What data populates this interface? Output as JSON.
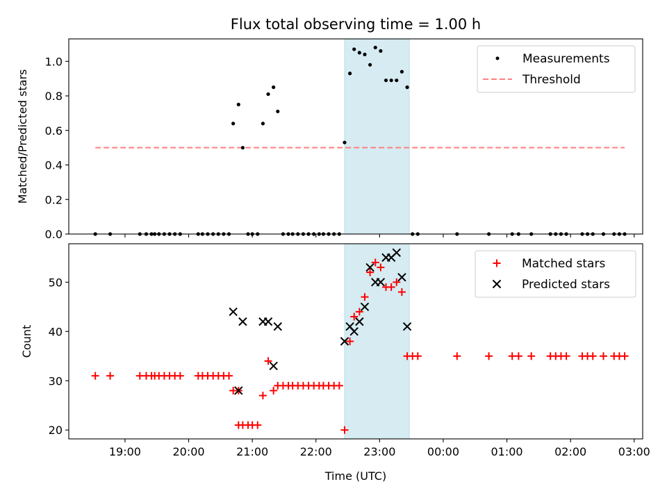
{
  "chart_data": [
    {
      "type": "scatter",
      "title": "Flux total observing time = 1.00 h",
      "ylabel": "Matched/Predicted stars",
      "xlabel": "",
      "ylim": [
        0,
        1.13
      ],
      "xlim": [
        "2024-01-01T18:07",
        "2024-01-02T03:08"
      ],
      "yticks": [
        "0.0",
        "0.2",
        "0.4",
        "0.6",
        "0.8",
        "1.0"
      ],
      "ytick_values": [
        0,
        0.2,
        0.4,
        0.6,
        0.8,
        1.0
      ],
      "highlight_span": [
        "2024-01-01T22:27",
        "2024-01-01T23:28"
      ],
      "highlight_color": "#add8e6",
      "legend": {
        "position": "top-right",
        "entries": [
          "Measurements",
          "Threshold"
        ]
      },
      "series": [
        {
          "name": "Measurements",
          "marker": "dot",
          "color": "#000000",
          "points": [
            [
              "2024-01-01T18:32",
              0
            ],
            [
              "2024-01-01T18:46",
              0
            ],
            [
              "2024-01-01T19:14",
              0
            ],
            [
              "2024-01-01T19:20",
              0
            ],
            [
              "2024-01-01T19:25",
              0
            ],
            [
              "2024-01-01T19:28",
              0
            ],
            [
              "2024-01-01T19:32",
              0
            ],
            [
              "2024-01-01T19:37",
              0
            ],
            [
              "2024-01-01T19:42",
              0
            ],
            [
              "2024-01-01T19:47",
              0
            ],
            [
              "2024-01-01T19:52",
              0
            ],
            [
              "2024-01-01T20:09",
              0
            ],
            [
              "2024-01-01T20:13",
              0
            ],
            [
              "2024-01-01T20:18",
              0
            ],
            [
              "2024-01-01T20:23",
              0
            ],
            [
              "2024-01-01T20:28",
              0
            ],
            [
              "2024-01-01T20:33",
              0
            ],
            [
              "2024-01-01T20:38",
              0
            ],
            [
              "2024-01-01T20:42",
              0.64
            ],
            [
              "2024-01-01T20:47",
              0.75
            ],
            [
              "2024-01-01T20:51",
              0.5
            ],
            [
              "2024-01-01T20:56",
              0
            ],
            [
              "2024-01-01T21:00",
              0
            ],
            [
              "2024-01-01T21:05",
              0
            ],
            [
              "2024-01-01T21:10",
              0.64
            ],
            [
              "2024-01-01T21:15",
              0.81
            ],
            [
              "2024-01-01T21:20",
              0.85
            ],
            [
              "2024-01-01T21:24",
              0.71
            ],
            [
              "2024-01-01T21:29",
              0
            ],
            [
              "2024-01-01T21:34",
              0
            ],
            [
              "2024-01-01T21:38",
              0
            ],
            [
              "2024-01-01T21:43",
              0
            ],
            [
              "2024-01-01T21:48",
              0
            ],
            [
              "2024-01-01T21:53",
              0
            ],
            [
              "2024-01-01T21:58",
              0
            ],
            [
              "2024-01-01T22:03",
              0
            ],
            [
              "2024-01-01T22:07",
              0
            ],
            [
              "2024-01-01T22:12",
              0
            ],
            [
              "2024-01-01T22:17",
              0
            ],
            [
              "2024-01-01T22:22",
              0
            ],
            [
              "2024-01-01T22:27",
              0.53
            ],
            [
              "2024-01-01T22:32",
              0.93
            ],
            [
              "2024-01-01T22:36",
              1.07
            ],
            [
              "2024-01-01T22:41",
              1.05
            ],
            [
              "2024-01-01T22:46",
              1.04
            ],
            [
              "2024-01-01T22:51",
              0.98
            ],
            [
              "2024-01-01T22:56",
              1.08
            ],
            [
              "2024-01-01T23:01",
              1.06
            ],
            [
              "2024-01-01T23:06",
              0.89
            ],
            [
              "2024-01-01T23:11",
              0.89
            ],
            [
              "2024-01-01T23:16",
              0.89
            ],
            [
              "2024-01-01T23:21",
              0.94
            ],
            [
              "2024-01-01T23:26",
              0.85
            ],
            [
              "2024-01-01T23:31",
              0
            ],
            [
              "2024-01-01T23:36",
              0
            ],
            [
              "2024-01-02T00:13",
              0
            ],
            [
              "2024-01-02T00:43",
              0
            ],
            [
              "2024-01-02T01:05",
              0
            ],
            [
              "2024-01-02T01:11",
              0
            ],
            [
              "2024-01-02T01:23",
              0
            ],
            [
              "2024-01-02T01:41",
              0
            ],
            [
              "2024-01-02T01:46",
              0
            ],
            [
              "2024-01-02T01:51",
              0
            ],
            [
              "2024-01-02T01:56",
              0
            ],
            [
              "2024-01-02T02:11",
              0
            ],
            [
              "2024-01-02T02:16",
              0
            ],
            [
              "2024-01-02T02:21",
              0
            ],
            [
              "2024-01-02T02:31",
              0
            ],
            [
              "2024-01-02T02:41",
              0
            ],
            [
              "2024-01-02T02:46",
              0
            ],
            [
              "2024-01-02T02:51",
              0
            ]
          ]
        },
        {
          "name": "Threshold",
          "marker": "dashed-line",
          "color": "#ff7f7f",
          "points": [
            [
              "2024-01-01T18:32",
              0.5
            ],
            [
              "2024-01-02T02:51",
              0.5
            ]
          ]
        }
      ]
    },
    {
      "type": "scatter",
      "title": "",
      "ylabel": "Count",
      "xlabel": "Time (UTC)",
      "ylim": [
        18.2,
        57.8
      ],
      "xlim": [
        "2024-01-01T18:07",
        "2024-01-02T03:08"
      ],
      "yticks": [
        "20",
        "30",
        "40",
        "50"
      ],
      "ytick_values": [
        20,
        30,
        40,
        50
      ],
      "xticks": [
        "19:00",
        "20:00",
        "21:00",
        "22:00",
        "23:00",
        "00:00",
        "01:00",
        "02:00",
        "03:00"
      ],
      "xtick_values": [
        "2024-01-01T19:00",
        "2024-01-01T20:00",
        "2024-01-01T21:00",
        "2024-01-01T22:00",
        "2024-01-01T23:00",
        "2024-01-02T00:00",
        "2024-01-02T01:00",
        "2024-01-02T02:00",
        "2024-01-02T03:00"
      ],
      "highlight_span": [
        "2024-01-01T22:27",
        "2024-01-01T23:28"
      ],
      "highlight_color": "#add8e6",
      "legend": {
        "position": "top-right",
        "entries": [
          "Matched stars",
          "Predicted stars"
        ]
      },
      "series": [
        {
          "name": "Matched stars",
          "marker": "plus",
          "color": "#ff0000",
          "points": [
            [
              "2024-01-01T18:32",
              31
            ],
            [
              "2024-01-01T18:46",
              31
            ],
            [
              "2024-01-01T19:14",
              31
            ],
            [
              "2024-01-01T19:20",
              31
            ],
            [
              "2024-01-01T19:25",
              31
            ],
            [
              "2024-01-01T19:28",
              31
            ],
            [
              "2024-01-01T19:32",
              31
            ],
            [
              "2024-01-01T19:37",
              31
            ],
            [
              "2024-01-01T19:42",
              31
            ],
            [
              "2024-01-01T19:47",
              31
            ],
            [
              "2024-01-01T19:52",
              31
            ],
            [
              "2024-01-01T20:09",
              31
            ],
            [
              "2024-01-01T20:13",
              31
            ],
            [
              "2024-01-01T20:18",
              31
            ],
            [
              "2024-01-01T20:23",
              31
            ],
            [
              "2024-01-01T20:28",
              31
            ],
            [
              "2024-01-01T20:33",
              31
            ],
            [
              "2024-01-01T20:38",
              31
            ],
            [
              "2024-01-01T20:42",
              28
            ],
            [
              "2024-01-01T20:47",
              28
            ],
            [
              "2024-01-01T20:47",
              21
            ],
            [
              "2024-01-01T20:51",
              21
            ],
            [
              "2024-01-01T20:56",
              21
            ],
            [
              "2024-01-01T21:00",
              21
            ],
            [
              "2024-01-01T21:05",
              21
            ],
            [
              "2024-01-01T21:10",
              27
            ],
            [
              "2024-01-01T21:15",
              34
            ],
            [
              "2024-01-01T21:20",
              28
            ],
            [
              "2024-01-01T21:24",
              29
            ],
            [
              "2024-01-01T21:29",
              29
            ],
            [
              "2024-01-01T21:34",
              29
            ],
            [
              "2024-01-01T21:38",
              29
            ],
            [
              "2024-01-01T21:43",
              29
            ],
            [
              "2024-01-01T21:48",
              29
            ],
            [
              "2024-01-01T21:53",
              29
            ],
            [
              "2024-01-01T21:58",
              29
            ],
            [
              "2024-01-01T22:03",
              29
            ],
            [
              "2024-01-01T22:07",
              29
            ],
            [
              "2024-01-01T22:12",
              29
            ],
            [
              "2024-01-01T22:17",
              29
            ],
            [
              "2024-01-01T22:22",
              29
            ],
            [
              "2024-01-01T22:27",
              20
            ],
            [
              "2024-01-01T22:32",
              38
            ],
            [
              "2024-01-01T22:36",
              43
            ],
            [
              "2024-01-01T22:41",
              44
            ],
            [
              "2024-01-01T22:46",
              47
            ],
            [
              "2024-01-01T22:51",
              52
            ],
            [
              "2024-01-01T22:56",
              54
            ],
            [
              "2024-01-01T23:01",
              53
            ],
            [
              "2024-01-01T23:06",
              49
            ],
            [
              "2024-01-01T23:11",
              49
            ],
            [
              "2024-01-01T23:16",
              50
            ],
            [
              "2024-01-01T23:21",
              48
            ],
            [
              "2024-01-01T23:26",
              35
            ],
            [
              "2024-01-01T23:31",
              35
            ],
            [
              "2024-01-01T23:36",
              35
            ],
            [
              "2024-01-02T00:13",
              35
            ],
            [
              "2024-01-02T00:43",
              35
            ],
            [
              "2024-01-02T01:05",
              35
            ],
            [
              "2024-01-02T01:11",
              35
            ],
            [
              "2024-01-02T01:23",
              35
            ],
            [
              "2024-01-02T01:41",
              35
            ],
            [
              "2024-01-02T01:46",
              35
            ],
            [
              "2024-01-02T01:51",
              35
            ],
            [
              "2024-01-02T01:56",
              35
            ],
            [
              "2024-01-02T02:11",
              35
            ],
            [
              "2024-01-02T02:16",
              35
            ],
            [
              "2024-01-02T02:21",
              35
            ],
            [
              "2024-01-02T02:31",
              35
            ],
            [
              "2024-01-02T02:41",
              35
            ],
            [
              "2024-01-02T02:46",
              35
            ],
            [
              "2024-01-02T02:51",
              35
            ]
          ]
        },
        {
          "name": "Predicted stars",
          "marker": "x",
          "color": "#000000",
          "points": [
            [
              "2024-01-01T20:42",
              44
            ],
            [
              "2024-01-01T20:47",
              28
            ],
            [
              "2024-01-01T20:51",
              42
            ],
            [
              "2024-01-01T21:10",
              42
            ],
            [
              "2024-01-01T21:15",
              42
            ],
            [
              "2024-01-01T21:20",
              33
            ],
            [
              "2024-01-01T21:24",
              41
            ],
            [
              "2024-01-01T22:27",
              38
            ],
            [
              "2024-01-01T22:32",
              41
            ],
            [
              "2024-01-01T22:36",
              40
            ],
            [
              "2024-01-01T22:41",
              42
            ],
            [
              "2024-01-01T22:46",
              45
            ],
            [
              "2024-01-01T22:51",
              53
            ],
            [
              "2024-01-01T22:56",
              50
            ],
            [
              "2024-01-01T23:01",
              50
            ],
            [
              "2024-01-01T23:06",
              55
            ],
            [
              "2024-01-01T23:11",
              55
            ],
            [
              "2024-01-01T23:16",
              56
            ],
            [
              "2024-01-01T23:21",
              51
            ],
            [
              "2024-01-01T23:26",
              41
            ]
          ]
        }
      ]
    }
  ]
}
